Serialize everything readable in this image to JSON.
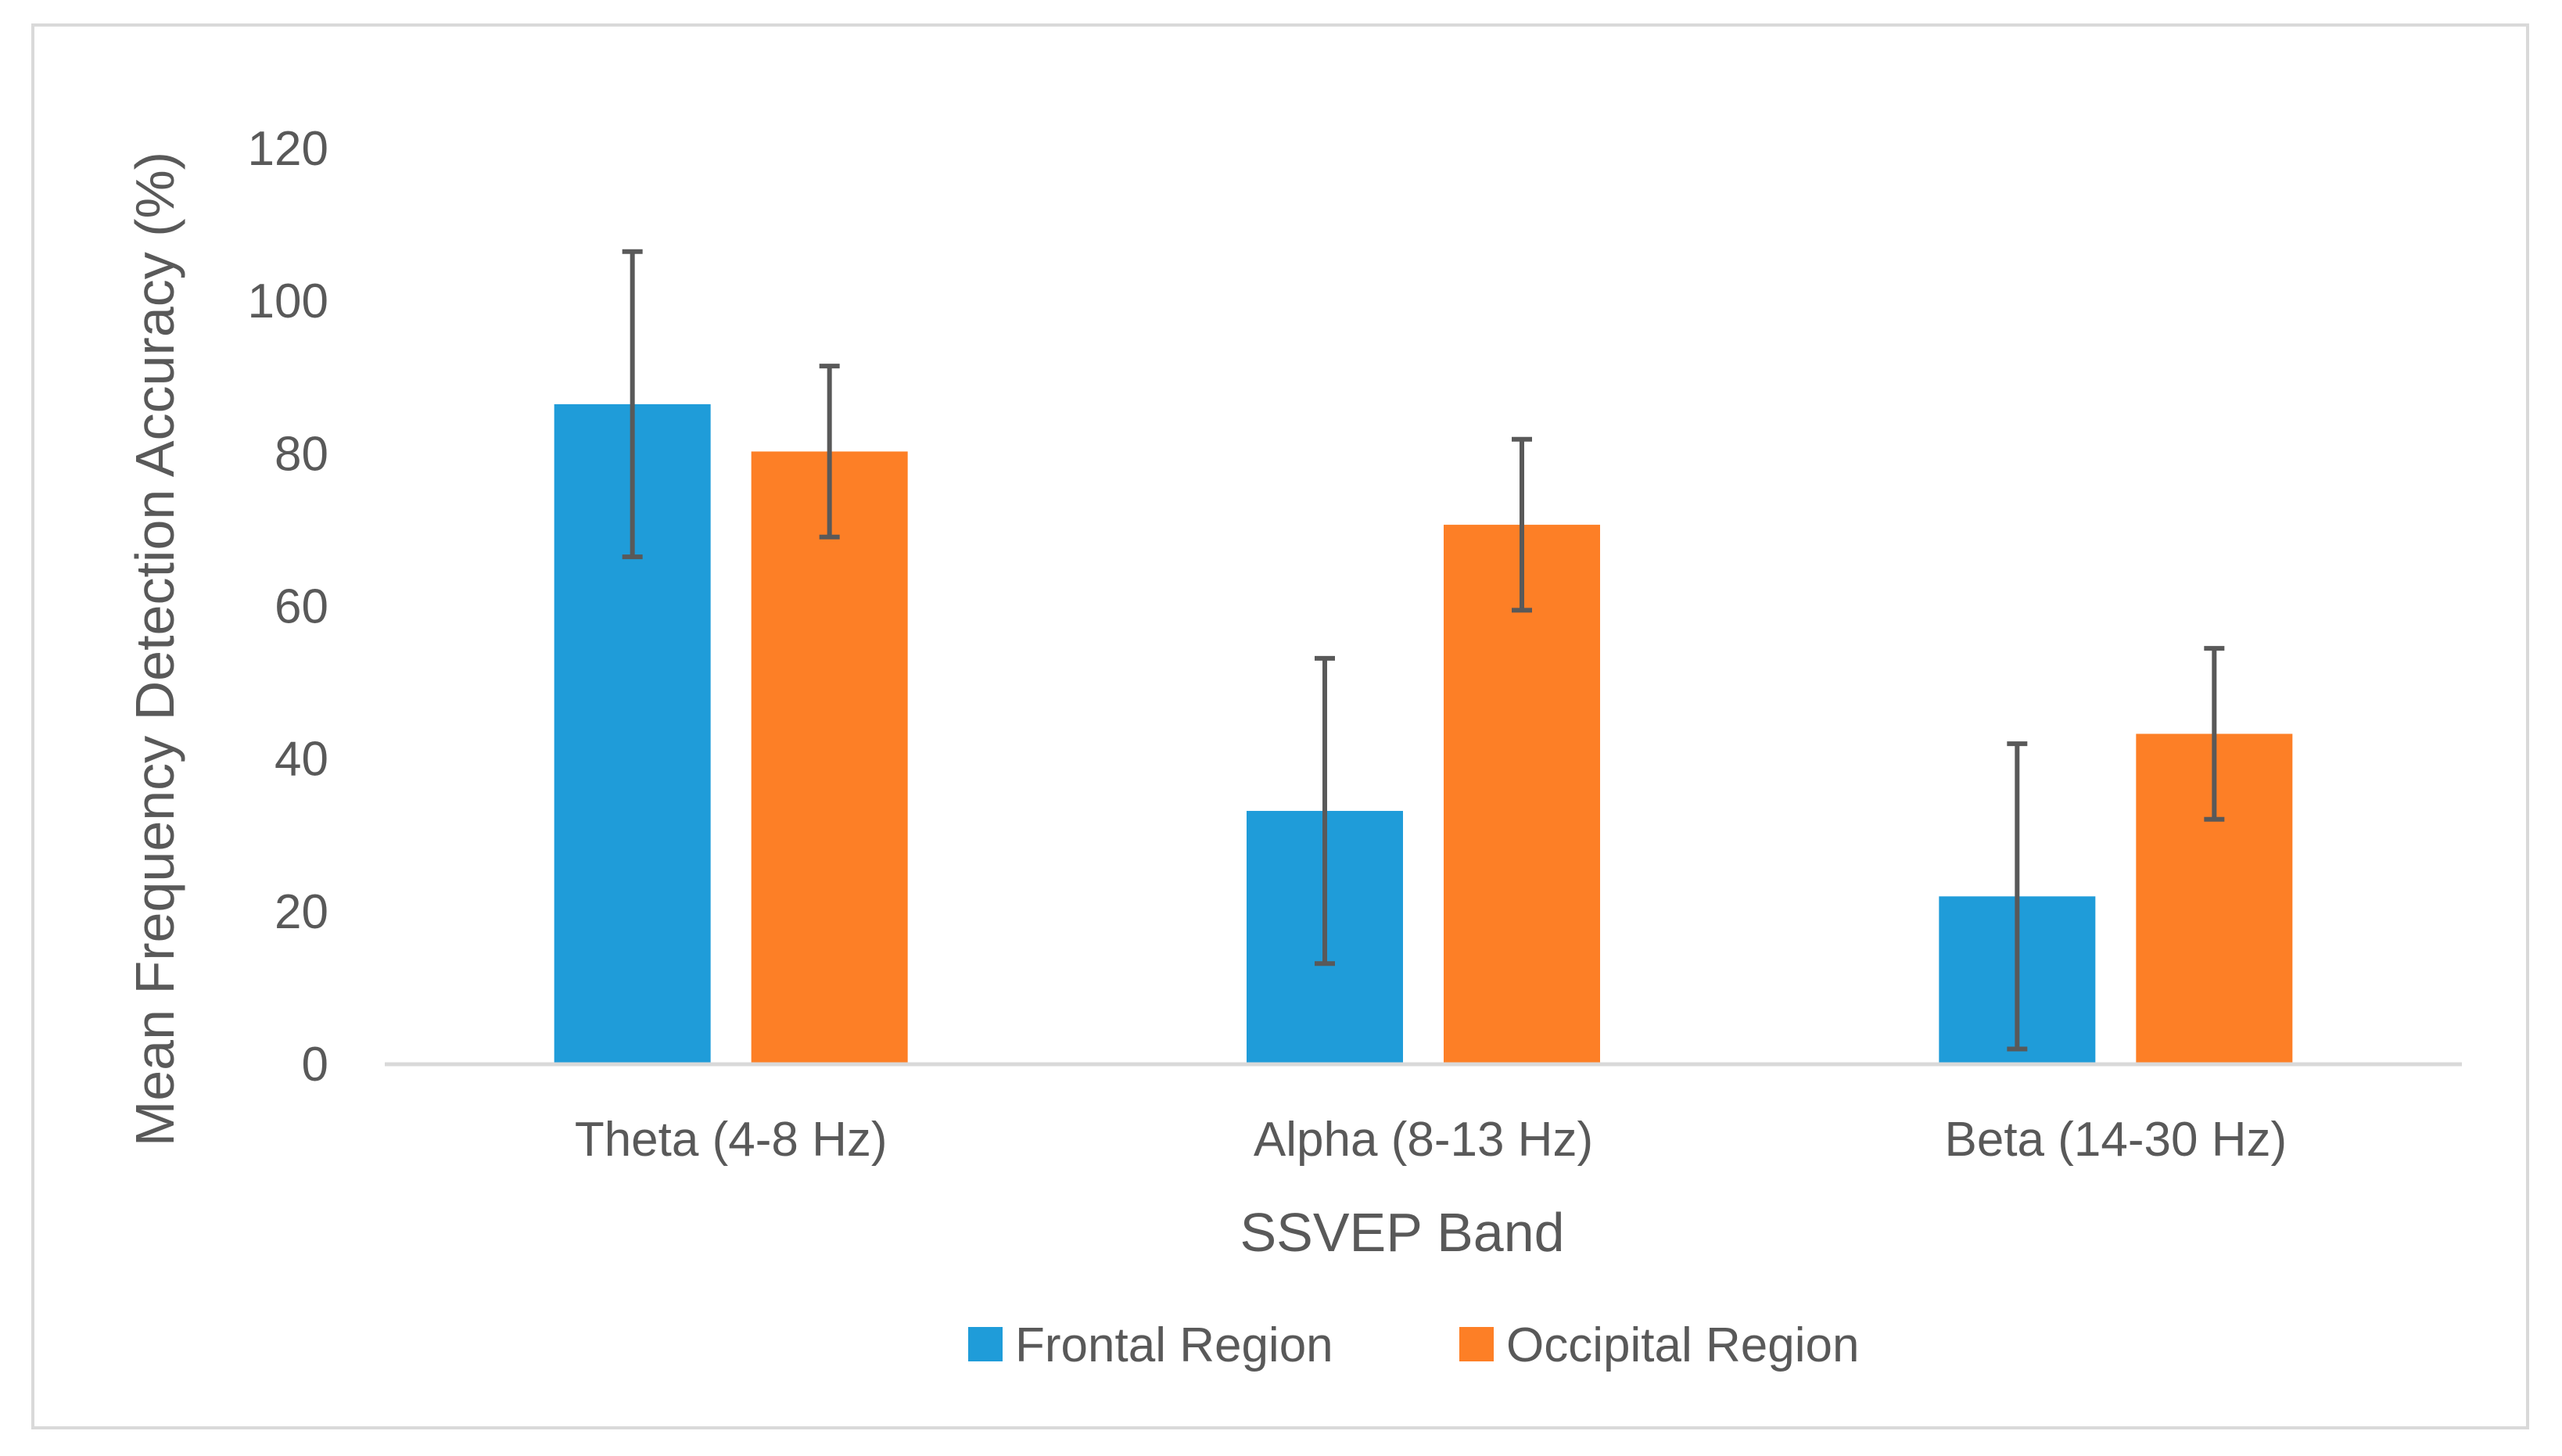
{
  "chart_data": {
    "type": "bar",
    "title": "",
    "xlabel": "SSVEP Band",
    "ylabel": "Mean Frequency Detection Accuracy (%)",
    "categories": [
      "Theta (4-8 Hz)",
      "Alpha (8-13 Hz)",
      "Beta (14-30 Hz)"
    ],
    "series": [
      {
        "name": "Frontal Region",
        "color": "#1f9cd9",
        "values": [
          86.5,
          33.2,
          22.0
        ],
        "error": [
          20.0,
          20.0,
          20.0
        ]
      },
      {
        "name": "Occipital Region",
        "color": "#fd7f26",
        "values": [
          80.3,
          70.7,
          43.3
        ],
        "error": [
          11.2,
          11.2,
          11.2
        ]
      }
    ],
    "ylim": [
      0,
      120
    ],
    "yticks": [
      0,
      20,
      40,
      60,
      80,
      100,
      120
    ],
    "grid": false,
    "legend_position": "bottom"
  }
}
